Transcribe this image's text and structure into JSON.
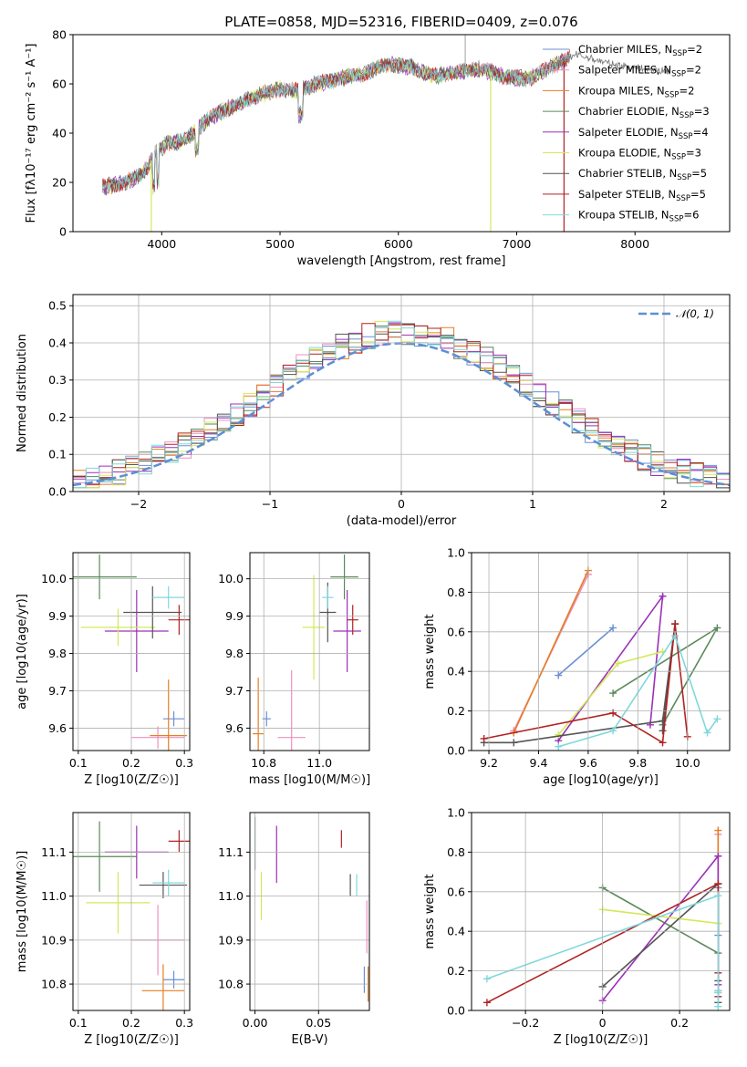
{
  "figure": {
    "title": "PLATE=0858, MJD=52316, FIBERID=0409, z=0.076"
  },
  "colors": {
    "Chabrier MILES": "#6a8fd6",
    "Salpeter MILES": "#ee8fbf",
    "Kroupa MILES": "#e67e22",
    "Chabrier ELODIE": "#5a8a5a",
    "Salpeter ELODIE": "#9b30b8",
    "Kroupa ELODIE": "#d4e85a",
    "Chabrier STELIB": "#555555",
    "Salpeter STELIB": "#b22222",
    "Kroupa STELIB": "#7fd8dc"
  },
  "chart_data": [
    {
      "id": "spectrum",
      "type": "line",
      "xlabel": "wavelength [Angstrom, rest frame]",
      "ylabel": "Flux [fλ10⁻¹⁷ erg cm⁻² s⁻¹ A⁻¹]",
      "xlim": [
        3250,
        8800
      ],
      "ylim": [
        0,
        80
      ],
      "xticks": [
        4000,
        5000,
        6000,
        7000,
        8000
      ],
      "yticks": [
        0,
        20,
        40,
        60,
        80
      ],
      "legend": [
        {
          "name": "Chabrier MILES",
          "label": "Chabrier MILES, N",
          "sub": "SSP",
          "eq": "=2"
        },
        {
          "name": "Salpeter MILES",
          "label": "Salpeter MILES, N",
          "sub": "SSP",
          "eq": "=2"
        },
        {
          "name": "Kroupa MILES",
          "label": "Kroupa MILES, N",
          "sub": "SSP",
          "eq": "=2"
        },
        {
          "name": "Chabrier ELODIE",
          "label": "Chabrier ELODIE, N",
          "sub": "SSP",
          "eq": "=3"
        },
        {
          "name": "Salpeter ELODIE",
          "label": "Salpeter ELODIE, N",
          "sub": "SSP",
          "eq": "=4"
        },
        {
          "name": "Kroupa ELODIE",
          "label": "Kroupa ELODIE, N",
          "sub": "SSP",
          "eq": "=3"
        },
        {
          "name": "Chabrier STELIB",
          "label": "Chabrier STELIB, N",
          "sub": "SSP",
          "eq": "=5"
        },
        {
          "name": "Salpeter STELIB",
          "label": "Salpeter STELIB, N",
          "sub": "SSP",
          "eq": "=5"
        },
        {
          "name": "Kroupa STELIB",
          "label": "Kroupa STELIB, N",
          "sub": "SSP",
          "eq": "=6"
        }
      ],
      "continuum": [
        [
          3500,
          18
        ],
        [
          3700,
          20
        ],
        [
          3850,
          24
        ],
        [
          3950,
          32
        ],
        [
          4050,
          36
        ],
        [
          4200,
          37
        ],
        [
          4400,
          46
        ],
        [
          4600,
          51
        ],
        [
          4800,
          55
        ],
        [
          5000,
          58
        ],
        [
          5150,
          57
        ],
        [
          5300,
          60
        ],
        [
          5500,
          62
        ],
        [
          5700,
          64
        ],
        [
          5900,
          68
        ],
        [
          6100,
          67
        ],
        [
          6300,
          63
        ],
        [
          6500,
          65
        ],
        [
          6700,
          66
        ],
        [
          6900,
          63
        ],
        [
          7100,
          62
        ],
        [
          7300,
          67
        ],
        [
          7500,
          72
        ],
        [
          7800,
          68
        ],
        [
          8100,
          66
        ],
        [
          8300,
          65
        ]
      ]
    },
    {
      "id": "residuals",
      "type": "line",
      "xlabel": "(data-model)/error",
      "ylabel": "Normed distribution",
      "xlim": [
        -2.5,
        2.5
      ],
      "ylim": [
        0,
        0.53
      ],
      "xticks": [
        -2,
        -1,
        0,
        1,
        2
      ],
      "yticks": [
        0.0,
        0.1,
        0.2,
        0.3,
        0.4,
        0.5
      ],
      "legend": "𝒩(0, 1)",
      "gaussian": {
        "mu": 0,
        "sigma": 1
      }
    },
    {
      "id": "age-vs-Z",
      "type": "scatter",
      "xlabel": "Z [log10(Z/Z☉)]",
      "ylabel": "age  [log10(age/yr)]",
      "xlim": [
        0.09,
        0.31
      ],
      "ylim": [
        9.54,
        10.07
      ],
      "xticks": [
        0.1,
        0.2,
        0.3
      ],
      "yticks": [
        9.6,
        9.7,
        9.8,
        9.9,
        10.0
      ],
      "points": [
        {
          "model": "Chabrier MILES",
          "x": 0.28,
          "y": 9.625,
          "xerr": 0.02,
          "yerr": 0.02
        },
        {
          "model": "Salpeter MILES",
          "x": 0.25,
          "y": 9.575,
          "xerr": 0.05,
          "yerr": 0.03
        },
        {
          "model": "Kroupa MILES",
          "x": 0.27,
          "y": 9.58,
          "xerr": 0.035,
          "yerr": 0.15
        },
        {
          "model": "Chabrier ELODIE",
          "x": 0.14,
          "y": 10.005,
          "xerr": 0.07,
          "yerr": 0.06
        },
        {
          "model": "Salpeter ELODIE",
          "x": 0.21,
          "y": 9.86,
          "xerr": 0.06,
          "yerr": 0.11
        },
        {
          "model": "Kroupa ELODIE",
          "x": 0.175,
          "y": 9.87,
          "xerr": 0.07,
          "yerr": 0.05
        },
        {
          "model": "Chabrier STELIB",
          "x": 0.24,
          "y": 9.91,
          "xerr": 0.055,
          "yerr": 0.07
        },
        {
          "model": "Salpeter STELIB",
          "x": 0.29,
          "y": 9.89,
          "xerr": 0.02,
          "yerr": 0.04
        },
        {
          "model": "Kroupa STELIB",
          "x": 0.27,
          "y": 9.95,
          "xerr": 0.03,
          "yerr": 0.03
        }
      ]
    },
    {
      "id": "age-vs-mass",
      "type": "scatter",
      "xlabel": "mass [log10(M/M☉)]",
      "ylabel": "",
      "xlim": [
        10.75,
        11.18
      ],
      "ylim": [
        9.54,
        10.07
      ],
      "xticks": [
        10.8,
        11.0
      ],
      "yticks": [
        9.6,
        9.7,
        9.8,
        9.9,
        10.0
      ],
      "points": [
        {
          "model": "Chabrier MILES",
          "x": 10.81,
          "y": 9.625,
          "xerr": 0.015,
          "yerr": 0.02
        },
        {
          "model": "Salpeter MILES",
          "x": 10.9,
          "y": 9.575,
          "xerr": 0.05,
          "yerr": 0.18
        },
        {
          "model": "Kroupa MILES",
          "x": 10.78,
          "y": 9.585,
          "xerr": 0.02,
          "yerr": 0.15
        },
        {
          "model": "Chabrier ELODIE",
          "x": 11.09,
          "y": 10.005,
          "xerr": 0.05,
          "yerr": 0.06
        },
        {
          "model": "Salpeter ELODIE",
          "x": 11.1,
          "y": 9.86,
          "xerr": 0.05,
          "yerr": 0.11
        },
        {
          "model": "Kroupa ELODIE",
          "x": 10.98,
          "y": 9.87,
          "xerr": 0.04,
          "yerr": 0.14
        },
        {
          "model": "Chabrier STELIB",
          "x": 11.03,
          "y": 9.91,
          "xerr": 0.03,
          "yerr": 0.08
        },
        {
          "model": "Salpeter STELIB",
          "x": 11.12,
          "y": 9.89,
          "xerr": 0.02,
          "yerr": 0.04
        },
        {
          "model": "Kroupa STELIB",
          "x": 11.03,
          "y": 9.95,
          "xerr": 0.02,
          "yerr": 0.03
        }
      ]
    },
    {
      "id": "weight-vs-age",
      "type": "line",
      "xlabel": "age  [log10(age/yr)]",
      "ylabel": "mass weight",
      "xlim": [
        9.13,
        10.17
      ],
      "ylim": [
        0,
        1.0
      ],
      "xticks": [
        9.2,
        9.4,
        9.6,
        9.8,
        10.0
      ],
      "yticks": [
        0.0,
        0.2,
        0.4,
        0.6,
        0.8,
        1.0
      ],
      "series": [
        {
          "model": "Chabrier MILES",
          "x": [
            9.48,
            9.7
          ],
          "y": [
            0.38,
            0.62
          ]
        },
        {
          "model": "Salpeter MILES",
          "x": [
            9.3,
            9.6
          ],
          "y": [
            0.1,
            0.89
          ]
        },
        {
          "model": "Kroupa MILES",
          "x": [
            9.3,
            9.6
          ],
          "y": [
            0.09,
            0.91
          ]
        },
        {
          "model": "Chabrier ELODIE",
          "x": [
            9.9,
            10.12,
            9.7
          ],
          "y": [
            0.13,
            0.62,
            0.29
          ]
        },
        {
          "model": "Salpeter ELODIE",
          "x": [
            9.48,
            9.9,
            9.85
          ],
          "y": [
            0.05,
            0.78,
            0.13
          ]
        },
        {
          "model": "Kroupa ELODIE",
          "x": [
            9.48,
            9.72,
            9.9
          ],
          "y": [
            0.08,
            0.44,
            0.5
          ]
        },
        {
          "model": "Chabrier STELIB",
          "x": [
            9.18,
            9.3,
            9.9,
            9.95,
            9.9
          ],
          "y": [
            0.04,
            0.04,
            0.15,
            0.64,
            0.1
          ]
        },
        {
          "model": "Salpeter STELIB",
          "x": [
            9.18,
            9.7,
            9.9,
            9.95,
            10.0
          ],
          "y": [
            0.06,
            0.19,
            0.04,
            0.64,
            0.07
          ]
        },
        {
          "model": "Kroupa STELIB",
          "x": [
            9.48,
            9.7,
            9.95,
            10.08,
            10.12
          ],
          "y": [
            0.02,
            0.1,
            0.58,
            0.09,
            0.16
          ]
        }
      ]
    },
    {
      "id": "mass-vs-Z",
      "type": "scatter",
      "xlabel": "Z [log10(Z/Z☉)]",
      "ylabel": "mass [log10(M/M☉)]",
      "xlim": [
        0.09,
        0.31
      ],
      "ylim": [
        10.74,
        11.19
      ],
      "xticks": [
        0.1,
        0.2,
        0.3
      ],
      "yticks": [
        10.8,
        10.9,
        11.0,
        11.1
      ],
      "points": [
        {
          "model": "Chabrier MILES",
          "x": 0.28,
          "y": 10.81,
          "xerr": 0.02,
          "yerr": 0.02
        },
        {
          "model": "Salpeter MILES",
          "x": 0.25,
          "y": 10.9,
          "xerr": 0.05,
          "yerr": 0.08
        },
        {
          "model": "Kroupa MILES",
          "x": 0.26,
          "y": 10.785,
          "xerr": 0.04,
          "yerr": 0.06
        },
        {
          "model": "Chabrier ELODIE",
          "x": 0.14,
          "y": 11.09,
          "xerr": 0.07,
          "yerr": 0.08
        },
        {
          "model": "Salpeter ELODIE",
          "x": 0.21,
          "y": 11.1,
          "xerr": 0.06,
          "yerr": 0.06
        },
        {
          "model": "Kroupa ELODIE",
          "x": 0.175,
          "y": 10.985,
          "xerr": 0.06,
          "yerr": 0.07
        },
        {
          "model": "Chabrier STELIB",
          "x": 0.26,
          "y": 11.025,
          "xerr": 0.045,
          "yerr": 0.03
        },
        {
          "model": "Salpeter STELIB",
          "x": 0.29,
          "y": 11.125,
          "xerr": 0.02,
          "yerr": 0.025
        },
        {
          "model": "Kroupa STELIB",
          "x": 0.27,
          "y": 11.03,
          "xerr": 0.03,
          "yerr": 0.03
        }
      ]
    },
    {
      "id": "mass-vs-EBV",
      "type": "scatter",
      "xlabel": "E(B-V)",
      "ylabel": "",
      "xlim": [
        -0.004,
        0.09
      ],
      "ylim": [
        10.74,
        11.19
      ],
      "xticks": [
        0.0,
        0.05
      ],
      "yticks": [
        10.8,
        10.9,
        11.0,
        11.1
      ],
      "xtick_labels": [
        "0.00",
        "0.05"
      ],
      "points": [
        {
          "model": "Chabrier MILES",
          "x": 0.086,
          "y": 10.81,
          "xerr": 0,
          "yerr": 0.03
        },
        {
          "model": "Salpeter MILES",
          "x": 0.088,
          "y": 10.93,
          "xerr": 0,
          "yerr": 0.06
        },
        {
          "model": "Kroupa MILES",
          "x": 0.089,
          "y": 10.8,
          "xerr": 0,
          "yerr": 0.04
        },
        {
          "model": "Chabrier ELODIE",
          "x": 0.0,
          "y": 11.12,
          "xerr": 0,
          "yerr": 0.06
        },
        {
          "model": "Salpeter ELODIE",
          "x": 0.017,
          "y": 11.095,
          "xerr": 0,
          "yerr": 0.065
        },
        {
          "model": "Kroupa ELODIE",
          "x": 0.005,
          "y": 11.0,
          "xerr": 0,
          "yerr": 0.055
        },
        {
          "model": "Chabrier STELIB",
          "x": 0.075,
          "y": 11.025,
          "xerr": 0,
          "yerr": 0.025
        },
        {
          "model": "Salpeter STELIB",
          "x": 0.068,
          "y": 11.13,
          "xerr": 0,
          "yerr": 0.02
        },
        {
          "model": "Kroupa STELIB",
          "x": 0.08,
          "y": 11.025,
          "xerr": 0,
          "yerr": 0.025
        }
      ]
    },
    {
      "id": "weight-vs-Z",
      "type": "line",
      "xlabel": "Z [log10(Z/Z☉)]",
      "ylabel": "mass weight",
      "xlim": [
        -0.34,
        0.33
      ],
      "ylim": [
        0,
        1.0
      ],
      "xticks": [
        -0.2,
        0.0,
        0.2
      ],
      "yticks": [
        0.0,
        0.2,
        0.4,
        0.6,
        0.8,
        1.0
      ],
      "series": [
        {
          "model": "Chabrier MILES",
          "x": [
            0.3,
            0.3
          ],
          "y": [
            0.38,
            0.62
          ]
        },
        {
          "model": "Salpeter MILES",
          "x": [
            0.3,
            0.3
          ],
          "y": [
            0.1,
            0.89
          ]
        },
        {
          "model": "Kroupa MILES",
          "x": [
            0.3,
            0.3
          ],
          "y": [
            0.09,
            0.91
          ]
        },
        {
          "model": "Chabrier ELODIE",
          "x": [
            0.0,
            0.3
          ],
          "y": [
            0.62,
            0.29
          ]
        },
        {
          "model": "Salpeter ELODIE",
          "x": [
            0.0,
            0.3,
            0.3
          ],
          "y": [
            0.05,
            0.78,
            0.13
          ]
        },
        {
          "model": "Kroupa ELODIE",
          "x": [
            0.0,
            0.3
          ],
          "y": [
            0.51,
            0.44
          ]
        },
        {
          "model": "Chabrier STELIB",
          "x": [
            0.0,
            0.3,
            0.3,
            0.3
          ],
          "y": [
            0.12,
            0.64,
            0.15,
            0.04
          ]
        },
        {
          "model": "Salpeter STELIB",
          "x": [
            -0.3,
            0.3,
            0.3,
            0.3
          ],
          "y": [
            0.04,
            0.64,
            0.19,
            0.07
          ]
        },
        {
          "model": "Kroupa STELIB",
          "x": [
            -0.3,
            0.3,
            0.3,
            0.3,
            0.3
          ],
          "y": [
            0.16,
            0.58,
            0.1,
            0.09,
            0.02
          ]
        }
      ]
    }
  ]
}
